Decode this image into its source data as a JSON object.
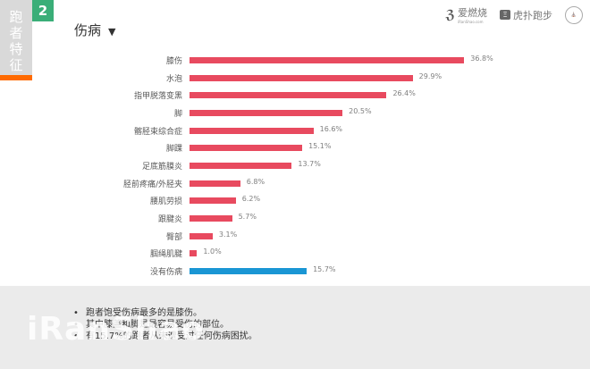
{
  "sidebar": {
    "title_chars": [
      "跑",
      "者",
      "特",
      "征"
    ],
    "page_number": "2"
  },
  "header": {
    "title": "伤病",
    "dropdown_glyph": "▼"
  },
  "logos": [
    {
      "name": "爱燃烧",
      "sub": "iRanShao.com"
    },
    {
      "name": "虎扑跑步",
      "mark": "Ξ"
    },
    {
      "name": "round-badge-logo"
    }
  ],
  "colors": {
    "bar_red": "#e84a5f",
    "bar_blue": "#1a96d4",
    "badge_green": "#3aae78",
    "accent_orange": "#ff6a00"
  },
  "chart_data": {
    "type": "bar",
    "orientation": "horizontal",
    "title": "伤病",
    "categories": [
      "膝伤",
      "水泡",
      "指甲脱落变黑",
      "脚",
      "髂胫束综合症",
      "脚踝",
      "足底筋膜炎",
      "胫前疼痛/外胫夹",
      "腰肌劳损",
      "跟腱炎",
      "臀部",
      "腘绳肌腱",
      "没有伤病"
    ],
    "values": [
      36.8,
      29.9,
      26.4,
      20.5,
      16.6,
      15.1,
      13.7,
      6.8,
      6.2,
      5.7,
      3.1,
      1.0,
      15.7
    ],
    "value_labels": [
      "36.8%",
      "29.9%",
      "26.4%",
      "20.5%",
      "16.6%",
      "15.1%",
      "13.7%",
      "6.8%",
      "6.2%",
      "5.7%",
      "3.1%",
      "1.0%",
      "15.7%"
    ],
    "bar_colors": [
      "#e84a5f",
      "#e84a5f",
      "#e84a5f",
      "#e84a5f",
      "#e84a5f",
      "#e84a5f",
      "#e84a5f",
      "#e84a5f",
      "#e84a5f",
      "#e84a5f",
      "#e84a5f",
      "#e84a5f",
      "#1a96d4"
    ],
    "unit": "%",
    "xlabel": "",
    "ylabel": "",
    "grid": false,
    "legend": false
  },
  "footer": {
    "notes": [
      "跑者饱受伤病最多的是膝伤。",
      "其中膝盖和脚是最容易受伤的部位。",
      "有15.7%的跑者从未遭受过任何伤病困扰。"
    ],
    "watermark": "iRanShao"
  }
}
